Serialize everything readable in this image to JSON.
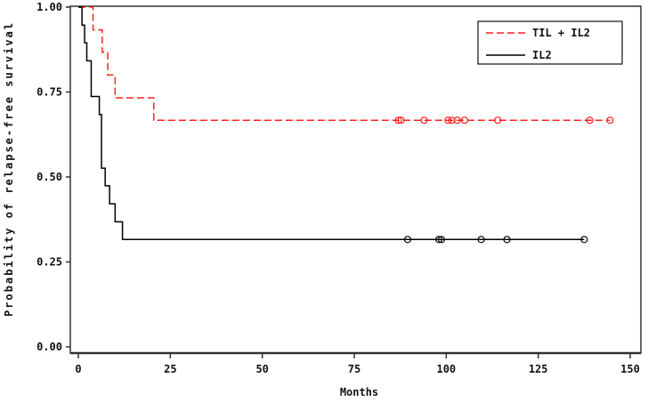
{
  "chart_data": {
    "type": "line",
    "subtype": "kaplan-meier step",
    "title": "",
    "xlabel": "Months",
    "ylabel": "Probability of relapse-free survival",
    "xlim": [
      0,
      150
    ],
    "ylim": [
      0,
      1
    ],
    "x_ticks": [
      "0",
      "25",
      "50",
      "75",
      "100",
      "125",
      "150"
    ],
    "y_ticks": [
      "0.00",
      "0.25",
      "0.50",
      "0.75",
      "1.00"
    ],
    "grid": false,
    "legend_position": "upper right",
    "series": [
      {
        "name": "TIL + IL2",
        "color": "#ff2020",
        "style": "dashed",
        "steps": [
          [
            0,
            1.0
          ],
          [
            4,
            0.933
          ],
          [
            6.5,
            0.867
          ],
          [
            8,
            0.8
          ],
          [
            10,
            0.733
          ],
          [
            20.5,
            0.667
          ],
          [
            144.5,
            0.667
          ]
        ],
        "censored_x": [
          87,
          87.7,
          94,
          100.5,
          101.5,
          103,
          105,
          114,
          139,
          144.5
        ],
        "censored_y": 0.667
      },
      {
        "name": "IL2",
        "color": "#000000",
        "style": "solid",
        "steps": [
          [
            0,
            1.0
          ],
          [
            1,
            0.947
          ],
          [
            1.7,
            0.895
          ],
          [
            2.3,
            0.842
          ],
          [
            3.5,
            0.737
          ],
          [
            5.7,
            0.684
          ],
          [
            6.3,
            0.526
          ],
          [
            7.3,
            0.474
          ],
          [
            8.5,
            0.421
          ],
          [
            10,
            0.368
          ],
          [
            12,
            0.316
          ],
          [
            137.5,
            0.316
          ]
        ],
        "censored_x": [
          89.5,
          98,
          98.7,
          109.5,
          116.5,
          137.5
        ],
        "censored_y": 0.316
      }
    ]
  }
}
